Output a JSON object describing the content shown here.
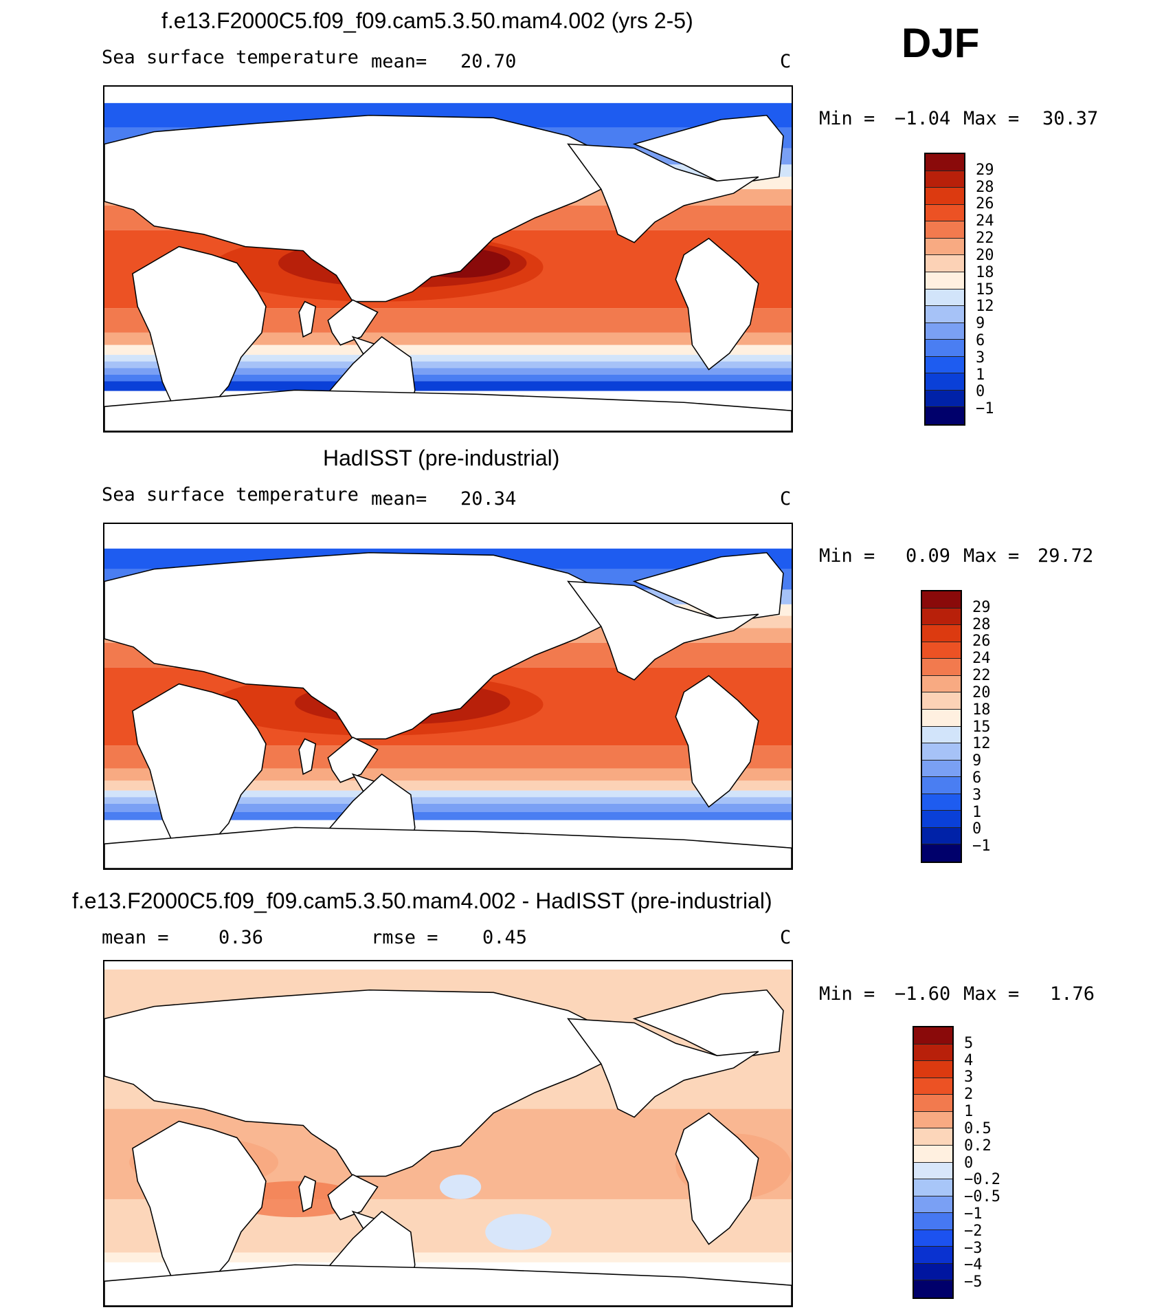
{
  "season": "DJF",
  "palettes": {
    "abs": [
      "#00006b",
      "#0022a8",
      "#0a40d8",
      "#1e5cf0",
      "#4a7ef2",
      "#7aa0f4",
      "#a6c2f7",
      "#d2e4fa",
      "#fff0e0",
      "#fcd2b6",
      "#f8aa82",
      "#f27a4e",
      "#ec5224",
      "#dc3a10",
      "#b8200a",
      "#8a0a0a"
    ],
    "diff": [
      "#00006b",
      "#0016a0",
      "#0a32d0",
      "#1c52f0",
      "#4678f2",
      "#7aa0f4",
      "#a8c6f8",
      "#d8e6fa",
      "#fff0e0",
      "#fcd6ba",
      "#f8aa82",
      "#f27a4e",
      "#ec5224",
      "#dc3a10",
      "#b8200a",
      "#8a0a0a"
    ]
  },
  "chart_data": [
    {
      "type": "heatmap",
      "title": "f.e13.F2000C5.f09_f09.cam5.3.50.mam4.002 (yrs 2-5)",
      "left_label": "Sea surface temperature",
      "mean_text": "mean=   20.70",
      "units": "C",
      "min_label": "Min =",
      "min_value": "−1.04",
      "max_label": "Max =",
      "max_value": "30.37",
      "colorbar_levels": [
        "29",
        "28",
        "26",
        "24",
        "22",
        "20",
        "18",
        "15",
        "12",
        "9",
        "6",
        "3",
        "1",
        "0",
        "−1"
      ]
    },
    {
      "type": "heatmap",
      "title": "HadISST (pre-industrial)",
      "left_label": "Sea surface temperature",
      "mean_text": "mean=   20.34",
      "units": "C",
      "min_label": "Min =",
      "min_value": "0.09",
      "max_label": "Max =",
      "max_value": "29.72",
      "colorbar_levels": [
        "29",
        "28",
        "26",
        "24",
        "22",
        "20",
        "18",
        "15",
        "12",
        "9",
        "6",
        "3",
        "1",
        "0",
        "−1"
      ]
    },
    {
      "type": "heatmap",
      "title": "f.e13.F2000C5.f09_f09.cam5.3.50.mam4.002 - HadISST (pre-industrial)",
      "mean_label": "mean =",
      "mean_value": "0.36",
      "rmse_label": "rmse =",
      "rmse_value": "0.45",
      "units": "C",
      "min_label": "Min =",
      "min_value": "−1.60",
      "max_label": "Max =",
      "max_value": "1.76",
      "colorbar_levels": [
        "5",
        "4",
        "3",
        "2",
        "1",
        "0.5",
        "0.2",
        "0",
        "−0.2",
        "−0.5",
        "−1",
        "−2",
        "−3",
        "−4",
        "−5"
      ]
    }
  ]
}
